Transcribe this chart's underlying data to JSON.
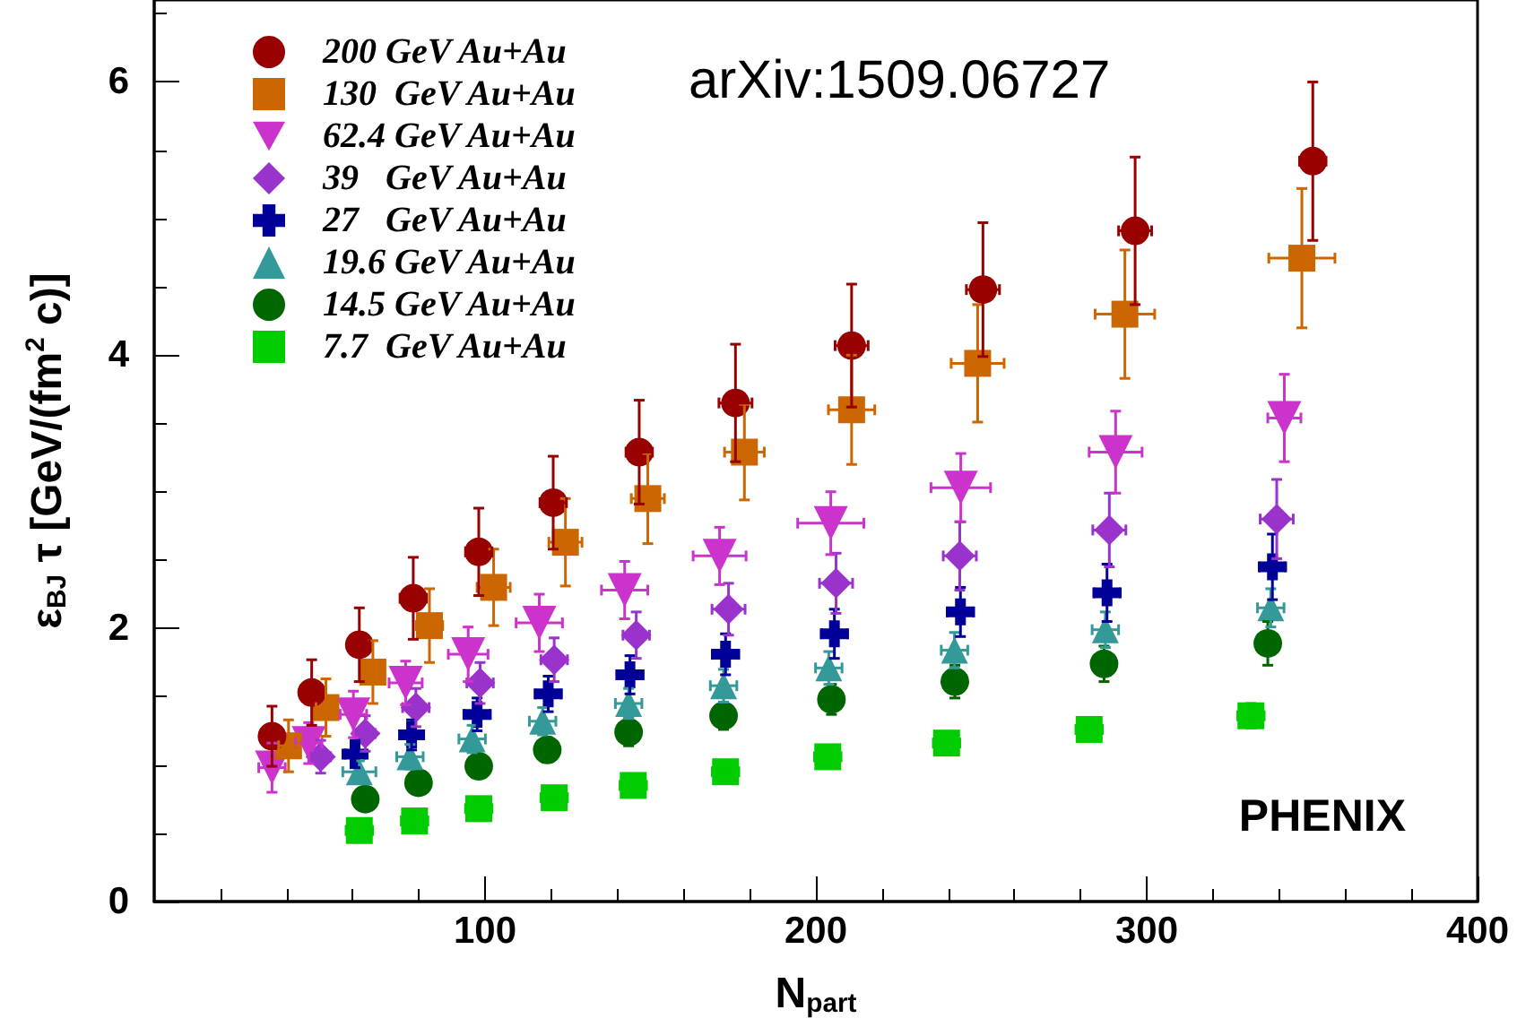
{
  "chart_data": {
    "type": "scatter",
    "xlabel": "N$_{part}$",
    "ylabel": "ε$_{BJ}$ τ [GeV/(fm$^{2}$ c)]",
    "xlim": [
      0,
      400
    ],
    "ylim": [
      0,
      6.6
    ],
    "xticks": [
      100,
      200,
      300,
      400
    ],
    "yticks": [
      0,
      2,
      4,
      6
    ],
    "grid": false,
    "legend": "top left",
    "annotations": [
      "arXiv:1509.06727",
      "PHENIX"
    ],
    "series": [
      {
        "name": "200 GeV Au+Au",
        "color": "#990000",
        "marker": "circle",
        "x": [
          35.6,
          47.6,
          62,
          78.3,
          98.1,
          120.6,
          146.6,
          175.7,
          210.8,
          250.5,
          296.5,
          350.2
        ],
        "values": [
          1.21,
          1.53,
          1.88,
          2.22,
          2.56,
          2.92,
          3.29,
          3.65,
          4.07,
          4.48,
          4.91,
          5.42
        ],
        "errors": [
          0.22,
          0.24,
          0.27,
          0.3,
          0.32,
          0.34,
          0.38,
          0.43,
          0.45,
          0.49,
          0.54,
          0.58
        ],
        "xerrors": [
          3,
          3,
          3,
          4,
          4,
          4,
          4,
          5,
          5,
          5,
          5,
          4
        ]
      },
      {
        "name": "130  GeV Au+Au",
        "color": "#cc6600",
        "marker": "square",
        "x": [
          40.6,
          51.9,
          66.1,
          83.2,
          102.6,
          124.3,
          149.2,
          178.4,
          210.8,
          248.9,
          293.4,
          346.9
        ],
        "values": [
          1.14,
          1.42,
          1.68,
          2.02,
          2.3,
          2.63,
          2.95,
          3.29,
          3.6,
          3.94,
          4.3,
          4.71
        ],
        "errors": [
          0.19,
          0.21,
          0.23,
          0.27,
          0.28,
          0.32,
          0.33,
          0.35,
          0.4,
          0.43,
          0.47,
          0.51
        ],
        "xerrors": [
          3,
          3,
          3,
          4,
          5,
          5,
          5,
          6,
          7,
          8,
          9,
          10
        ]
      },
      {
        "name": "62.4 GeV Au+Au",
        "color": "#cc33cc",
        "marker": "triangle-down",
        "x": [
          35.6,
          46.7,
          60.2,
          76,
          94.9,
          116.4,
          142.2,
          170.9,
          204.5,
          243.8,
          290.6,
          341.6
        ],
        "values": [
          0.98,
          1.16,
          1.37,
          1.6,
          1.81,
          2.04,
          2.28,
          2.53,
          2.77,
          3.03,
          3.29,
          3.54
        ],
        "errors": [
          0.18,
          0.15,
          0.17,
          0.16,
          0.2,
          0.21,
          0.21,
          0.21,
          0.23,
          0.25,
          0.3,
          0.32
        ],
        "xerrors": [
          4,
          4,
          4,
          5,
          6,
          7,
          7,
          8,
          10,
          9,
          8,
          5
        ]
      },
      {
        "name": "39   GeV Au+Au",
        "color": "#9933cc",
        "marker": "diamond",
        "x": [
          50.3,
          63.8,
          79.1,
          98.5,
          120.9,
          145.7,
          173.6,
          206.1,
          243.5,
          288.7,
          339.3
        ],
        "values": [
          1.06,
          1.23,
          1.42,
          1.6,
          1.77,
          1.95,
          2.14,
          2.33,
          2.53,
          2.72,
          2.8
        ],
        "errors": [
          0.12,
          0.13,
          0.14,
          0.15,
          0.16,
          0.17,
          0.19,
          0.22,
          0.25,
          0.27,
          0.29
        ],
        "xerrors": [
          3,
          3,
          4,
          4,
          4,
          4,
          5,
          5,
          5,
          5,
          5
        ]
      },
      {
        "name": "27   GeV Au+Au",
        "color": "#000099",
        "marker": "cross",
        "x": [
          60.7,
          77.8,
          97.6,
          119.1,
          143.8,
          172.7,
          205.6,
          243.7,
          288,
          338
        ],
        "values": [
          1.08,
          1.22,
          1.37,
          1.52,
          1.66,
          1.81,
          1.96,
          2.12,
          2.26,
          2.45
        ],
        "errors": [
          0.1,
          0.11,
          0.12,
          0.13,
          0.14,
          0.15,
          0.18,
          0.18,
          0.21,
          0.24
        ],
        "xerrors": [
          3,
          3,
          4,
          4,
          4,
          4,
          4,
          4,
          4,
          4
        ]
      },
      {
        "name": "19.6 GeV Au+Au",
        "color": "#339999",
        "marker": "triangle",
        "x": [
          62,
          77.3,
          96.1,
          117.4,
          143.4,
          172.1,
          203.9,
          241.9,
          287.5,
          337.5
        ],
        "values": [
          0.95,
          1.06,
          1.19,
          1.32,
          1.45,
          1.58,
          1.71,
          1.84,
          1.99,
          2.15
        ],
        "errors": [
          0.08,
          0.09,
          0.1,
          0.1,
          0.11,
          0.12,
          0.12,
          0.13,
          0.13,
          0.14
        ],
        "xerrors": [
          5,
          4,
          4,
          4,
          4,
          4,
          4,
          4,
          4,
          4
        ]
      },
      {
        "name": "14.5 GeV Au+Au",
        "color": "#006600",
        "marker": "circle",
        "x": [
          63.8,
          79.9,
          98.1,
          118.8,
          143.4,
          172.1,
          204.7,
          242,
          287.1,
          336.6
        ],
        "values": [
          0.75,
          0.87,
          0.99,
          1.11,
          1.24,
          1.36,
          1.48,
          1.61,
          1.74,
          1.89
        ],
        "errors": [
          0.07,
          0.08,
          0.08,
          0.09,
          0.1,
          0.1,
          0.11,
          0.12,
          0.13,
          0.16
        ],
        "xerrors": [
          3,
          3,
          3,
          3,
          3,
          3,
          3,
          3,
          3,
          3
        ]
      },
      {
        "name": "7.7  GeV Au+Au",
        "color": "#00cc00",
        "marker": "square",
        "x": [
          62,
          78.7,
          98.1,
          120.9,
          144.8,
          172.7,
          203.6,
          239.5,
          282.6,
          331.5
        ],
        "values": [
          0.52,
          0.59,
          0.68,
          0.76,
          0.85,
          0.95,
          1.06,
          1.16,
          1.26,
          1.36
        ],
        "errors": [
          0.05,
          0.05,
          0.05,
          0.06,
          0.06,
          0.06,
          0.07,
          0.08,
          0.08,
          0.09
        ],
        "xerrors": [
          4,
          4,
          4,
          4,
          4,
          4,
          4,
          4,
          4,
          4
        ]
      }
    ]
  }
}
